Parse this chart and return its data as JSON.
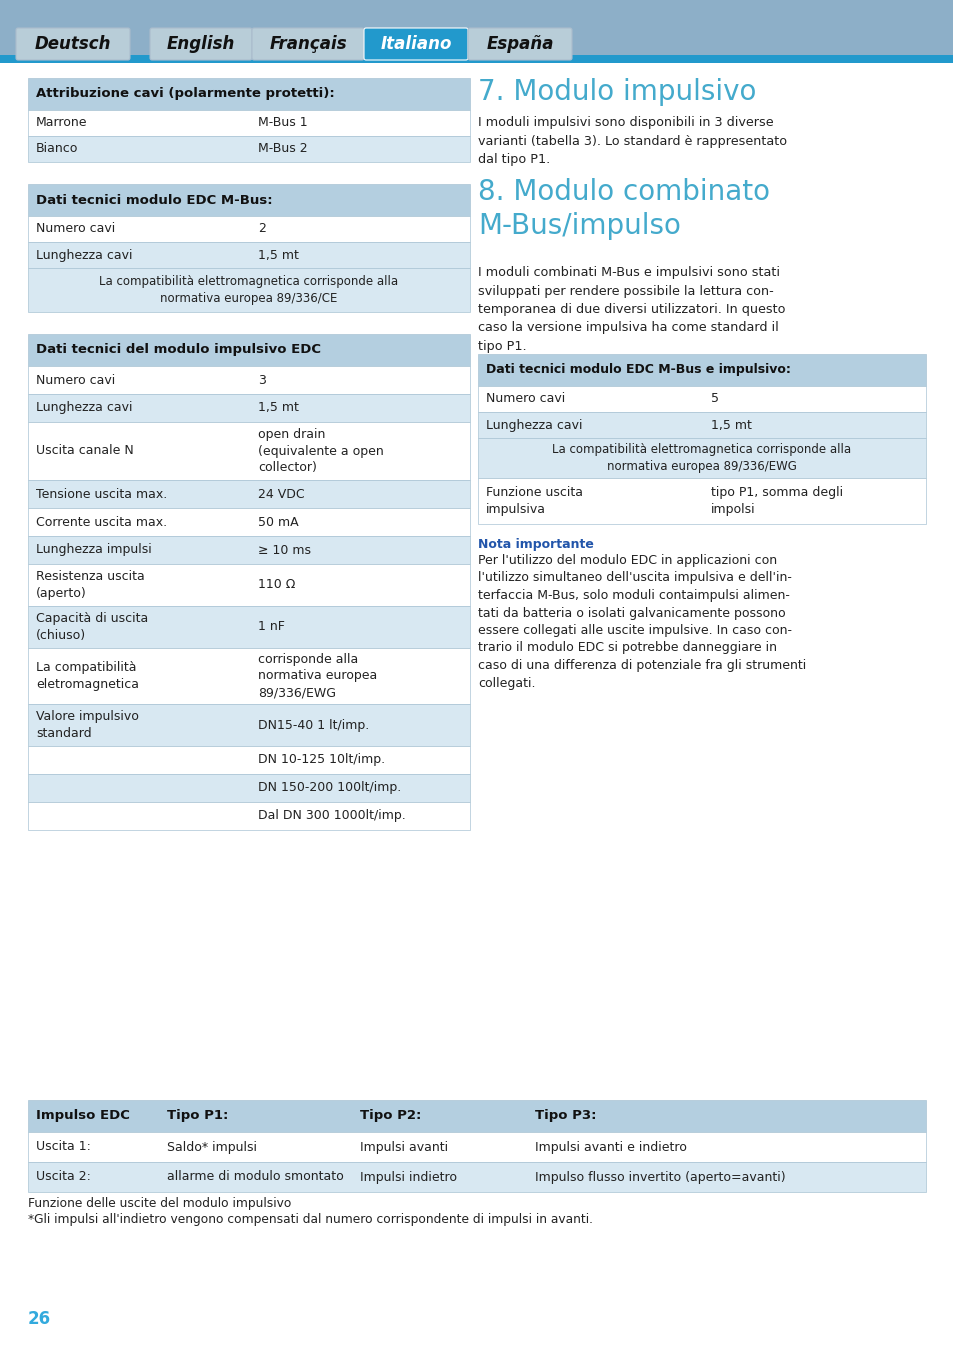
{
  "header_tabs": [
    "Deutsch",
    "English",
    "Français",
    "Italiano",
    "España"
  ],
  "header_active": "Italiano",
  "table1_title": "Attribuzione cavi (polarmente protetti):",
  "table1_rows": [
    [
      "Marrone",
      "M-Bus 1"
    ],
    [
      "Bianco",
      "M-Bus 2"
    ]
  ],
  "table2_title": "Dati tecnici modulo EDC M-Bus:",
  "table2_rows": [
    [
      "Numero cavi",
      "2"
    ],
    [
      "Lunghezza cavi",
      "1,5 mt"
    ]
  ],
  "table2_note": "La compatibilità elettromagnetica corrisponde alla\nnormativa europea 89/336/CE",
  "table3_title": "Dati tecnici del modulo impulsivo EDC",
  "table3_rows": [
    [
      "Numero cavi",
      "3"
    ],
    [
      "Lunghezza cavi",
      "1,5 mt"
    ],
    [
      "Uscita canale N",
      "open drain\n(equivalente a open\ncollector)"
    ],
    [
      "Tensione uscita max.",
      "24 VDC"
    ],
    [
      "Corrente uscita max.",
      "50 mA"
    ],
    [
      "Lunghezza impulsi",
      "≥ 10 ms"
    ],
    [
      "Resistenza uscita\n(aperto)",
      "110 Ω"
    ],
    [
      "Capacità di uscita\n(chiuso)",
      "1 nF"
    ],
    [
      "La compatibilità\neletromagnetica",
      "corrisponde alla\nnormativa europea\n89/336/EWG"
    ],
    [
      "Valore impulsivo\nstandard",
      "DN15-40 1 lt/imp."
    ],
    [
      "",
      "DN 10-125 10lt/imp."
    ],
    [
      "",
      "DN 150-200 100lt/imp."
    ],
    [
      "",
      "Dal DN 300 1000lt/imp."
    ]
  ],
  "table3_row_heights": [
    28,
    28,
    58,
    28,
    28,
    28,
    42,
    42,
    56,
    42,
    28,
    28,
    28
  ],
  "section7_title": "7. Modulo impulsivo",
  "section7_text": "I moduli impulsivi sono disponibili in 3 diverse\nvarianti (tabella 3). Lo standard è rappresentato\ndal tipo P1.",
  "section8_title": "8. Modulo combinato\nM-Bus/impulso",
  "section8_text": "I moduli combinati M-Bus e impulsivi sono stati\nsviluppati per rendere possibile la lettura con-\ntemporanea di due diversi utilizzatori. In questo\ncaso la versione impulsiva ha come standard il\ntipo P1.",
  "table4_title": "Dati tecnici modulo EDC M-Bus e impulsivo:",
  "table4_rows": [
    [
      "Numero cavi",
      "5"
    ],
    [
      "Lunghezza cavi",
      "1,5 mt"
    ]
  ],
  "table4_note": "La compatibilità elettromagnetica corrisponde alla\nnormativa europea 89/336/EWG",
  "table4_func": [
    "Funzione uscita\nimpulsiva",
    "tipo P1, somma degli\nimpolsi"
  ],
  "nota_title": "Nota importante",
  "nota_text": "Per l'utilizzo del modulo EDC in applicazioni con\nl'utilizzo simultaneo dell'uscita impulsiva e dell'in-\nterfaccia M-Bus, solo moduli contaimpulsi alimen-\ntati da batteria o isolati galvanicamente possono\nessere collegati alle uscite impulsive. In caso con-\ntrario il modulo EDC si potrebbe danneggiare in\ncaso di una differenza di potenziale fra gli strumenti\ncollegati.",
  "bottom_table_headers": [
    "Impulso EDC",
    "Tipo P1:",
    "Tipo P2:",
    "Tipo P3:"
  ],
  "bottom_table_rows": [
    [
      "Uscita 1:",
      "Saldo* impulsi",
      "Impulsi avanti",
      "Impulsi avanti e indietro"
    ],
    [
      "Uscita 2:",
      "allarme di modulo smontato",
      "Impulsi indietro",
      "Impulso flusso invertito (aperto=avanti)"
    ]
  ],
  "bottom_note1": "Funzione delle uscite del modulo impulsivo",
  "bottom_note2": "*Gli impulsi all'indietro vengono compensati dal numero corrispondente di impulsi in avanti.",
  "page_number": "26",
  "header_bg": "#8dafc8",
  "header_bar": "#2299cc",
  "tab_inactive_bg": "#b8cdd8",
  "tab_inactive_border": "#aabccc",
  "tab_active_bg": "#2299cc",
  "table_header_bg": "#b4cfe0",
  "row_even_bg": "#ffffff",
  "row_odd_bg": "#d8e8f2",
  "table_border": "#aac4d4",
  "title_color": "#44aacc",
  "text_color": "#222222",
  "nota_color": "#2255aa",
  "page_num_color": "#33aadd"
}
